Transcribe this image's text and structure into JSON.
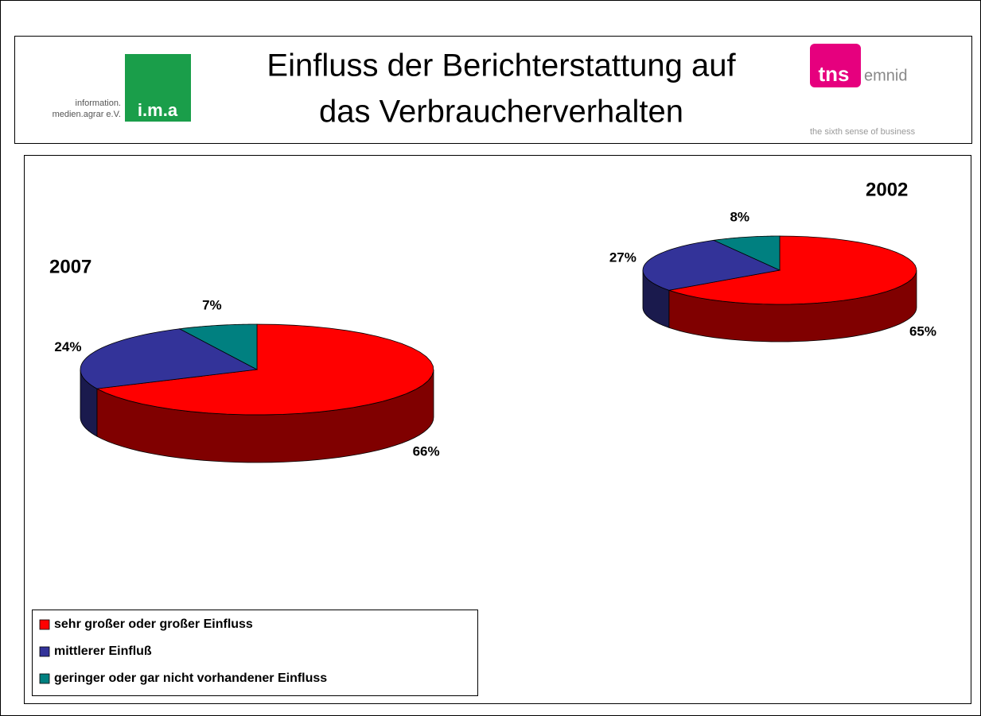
{
  "header": {
    "title_lines": [
      "Einfluss der Berichterstattung auf",
      "das Verbraucherverhalten"
    ],
    "ima_logo": {
      "line1": "information.",
      "line2": "medien.agrar e.V.",
      "mark": "i.m.a"
    },
    "tns_logo": {
      "mark": "tns",
      "name": "emnid",
      "slogan": "the sixth sense of business"
    }
  },
  "chart_data": [
    {
      "type": "pie3d",
      "title": "2007",
      "categories": [
        "sehr großer oder großer Einfluss",
        "mittlerer Einfluß",
        "geringer oder gar nicht vorhandener Einfluss"
      ],
      "values": [
        66,
        24,
        7
      ],
      "value_labels": [
        "66%",
        "24%",
        "7%"
      ],
      "colors": [
        "#ff0000",
        "#333399",
        "#008080"
      ],
      "legend": true
    },
    {
      "type": "pie3d",
      "title": "2002",
      "categories": [
        "sehr großer oder großer Einfluss",
        "mittlerer Einfluß",
        "geringer oder gar nicht vorhandener Einfluss"
      ],
      "values": [
        65,
        27,
        8
      ],
      "value_labels": [
        "65%",
        "27%",
        "8%"
      ],
      "colors": [
        "#ff0000",
        "#333399",
        "#008080"
      ],
      "legend": false
    }
  ]
}
